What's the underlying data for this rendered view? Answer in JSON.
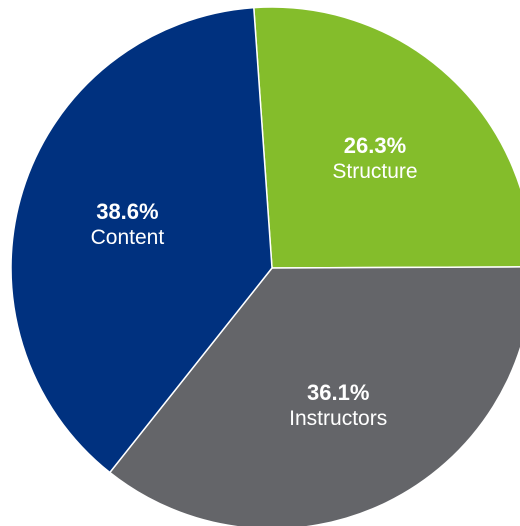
{
  "chart_data": {
    "type": "pie",
    "title": "",
    "start_direction": "top",
    "clockwise": true,
    "slices": [
      {
        "label": "Structure",
        "value": 26.3,
        "display": "26.3%",
        "color": "#84bd2b"
      },
      {
        "label": "Instructors",
        "value": 36.1,
        "display": "36.1%",
        "color": "#646569"
      },
      {
        "label": "Content",
        "value": 38.6,
        "display": "38.6%",
        "color": "#00317f"
      }
    ],
    "legend": "none",
    "separator_color": "#ffffff"
  }
}
